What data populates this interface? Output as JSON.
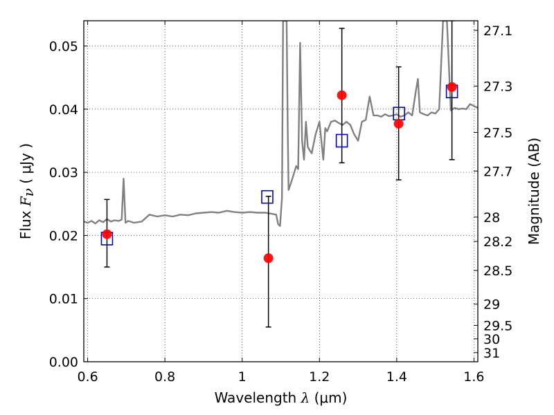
{
  "chart_data": {
    "type": "scatter",
    "xlabel": "Wavelength  λ (μm)",
    "xlabel_parts": {
      "prefix": "Wavelength  ",
      "symbol": "λ",
      "unit": " (μm)"
    },
    "ylabel": "Flux  Fν  ( μJy )",
    "ylabel_parts": {
      "prefix": "Flux  ",
      "symbol": "F",
      "subscript": "ν",
      "unit": "  ( μJy )"
    },
    "y2label": "Magnitude (AB)",
    "xlim": [
      0.59,
      1.61
    ],
    "ylim": [
      0.0,
      0.054
    ],
    "grid": true,
    "x_ticks": [
      {
        "value": 0.6,
        "label": "0.6"
      },
      {
        "value": 0.8,
        "label": "0.8"
      },
      {
        "value": 1.0,
        "label": "1"
      },
      {
        "value": 1.2,
        "label": "1.2"
      },
      {
        "value": 1.4,
        "label": "1.4"
      },
      {
        "value": 1.6,
        "label": "1.6"
      }
    ],
    "y_ticks": [
      {
        "value": 0.0,
        "label": "0.00"
      },
      {
        "value": 0.01,
        "label": "0.01"
      },
      {
        "value": 0.02,
        "label": "0.02"
      },
      {
        "value": 0.03,
        "label": "0.03"
      },
      {
        "value": 0.04,
        "label": "0.04"
      },
      {
        "value": 0.05,
        "label": "0.05"
      }
    ],
    "y2_ticks": [
      {
        "value": 27.1,
        "label": "27.1"
      },
      {
        "value": 27.3,
        "label": "27.3"
      },
      {
        "value": 27.5,
        "label": "27.5"
      },
      {
        "value": 27.7,
        "label": "27.7"
      },
      {
        "value": 28.0,
        "label": "28"
      },
      {
        "value": 28.2,
        "label": "28.2"
      },
      {
        "value": 28.5,
        "label": "28.5"
      },
      {
        "value": 29.0,
        "label": "29"
      },
      {
        "value": 29.5,
        "label": "29.5"
      },
      {
        "value": 30.0,
        "label": "30"
      },
      {
        "value": 31.0,
        "label": "31"
      }
    ],
    "series": [
      {
        "kind": "line",
        "color": "#808080",
        "x": [
          0.59,
          0.6,
          0.61,
          0.62,
          0.63,
          0.64,
          0.65,
          0.66,
          0.67,
          0.68,
          0.688,
          0.693,
          0.698,
          0.705,
          0.72,
          0.74,
          0.76,
          0.78,
          0.8,
          0.82,
          0.84,
          0.86,
          0.88,
          0.9,
          0.92,
          0.94,
          0.96,
          0.98,
          1.0,
          1.02,
          1.04,
          1.06,
          1.08,
          1.088,
          1.093,
          1.098,
          1.103,
          1.106,
          1.11,
          1.112,
          1.115,
          1.118,
          1.12,
          1.13,
          1.14,
          1.145,
          1.15,
          1.155,
          1.16,
          1.165,
          1.17,
          1.175,
          1.18,
          1.19,
          1.2,
          1.21,
          1.215,
          1.22,
          1.23,
          1.24,
          1.25,
          1.26,
          1.27,
          1.28,
          1.29,
          1.3,
          1.31,
          1.32,
          1.33,
          1.34,
          1.35,
          1.36,
          1.37,
          1.38,
          1.39,
          1.4,
          1.41,
          1.42,
          1.43,
          1.44,
          1.45,
          1.455,
          1.46,
          1.47,
          1.48,
          1.49,
          1.5,
          1.51,
          1.52,
          1.53,
          1.54,
          1.55,
          1.56,
          1.57,
          1.58,
          1.59,
          1.6,
          1.61
        ],
        "y": [
          0.0222,
          0.022,
          0.0223,
          0.0219,
          0.0224,
          0.0221,
          0.0226,
          0.0222,
          0.0224,
          0.0223,
          0.0225,
          0.029,
          0.022,
          0.0223,
          0.022,
          0.0222,
          0.0233,
          0.023,
          0.0232,
          0.023,
          0.0233,
          0.0232,
          0.0235,
          0.0236,
          0.0237,
          0.0236,
          0.0239,
          0.0237,
          0.0236,
          0.0237,
          0.0236,
          0.0236,
          0.0234,
          0.0233,
          0.0218,
          0.0215,
          0.026,
          0.054,
          0.054,
          0.054,
          0.054,
          0.037,
          0.0272,
          0.029,
          0.031,
          0.0305,
          0.0505,
          0.035,
          0.032,
          0.038,
          0.034,
          0.0335,
          0.033,
          0.036,
          0.038,
          0.032,
          0.037,
          0.0365,
          0.038,
          0.0382,
          0.0378,
          0.0375,
          0.038,
          0.0375,
          0.036,
          0.035,
          0.038,
          0.0383,
          0.042,
          0.039,
          0.039,
          0.0388,
          0.0392,
          0.0389,
          0.039,
          0.0392,
          0.0388,
          0.039,
          0.0395,
          0.039,
          0.043,
          0.0448,
          0.0395,
          0.0392,
          0.039,
          0.0395,
          0.0393,
          0.04,
          0.054,
          0.054,
          0.0398,
          0.0402,
          0.04,
          0.0401,
          0.04,
          0.0408,
          0.0405,
          0.0402
        ]
      },
      {
        "kind": "open-square",
        "color": "#0000cc",
        "x": [
          0.65,
          1.065,
          1.258,
          1.406,
          1.543
        ],
        "y": [
          0.0195,
          0.0261,
          0.035,
          0.0393,
          0.0428
        ]
      },
      {
        "kind": "filled-circle-errorbar",
        "color": "#ff0000",
        "errorbar_color": "#000000",
        "x": [
          0.65,
          1.068,
          1.258,
          1.405,
          1.543
        ],
        "y": [
          0.0202,
          0.0164,
          0.0422,
          0.0377,
          0.0435
        ],
        "y_low": [
          0.015,
          0.0055,
          0.0315,
          0.0288,
          0.032
        ],
        "y_high": [
          0.0257,
          0.0262,
          0.0528,
          0.0467,
          0.054
        ]
      }
    ]
  }
}
